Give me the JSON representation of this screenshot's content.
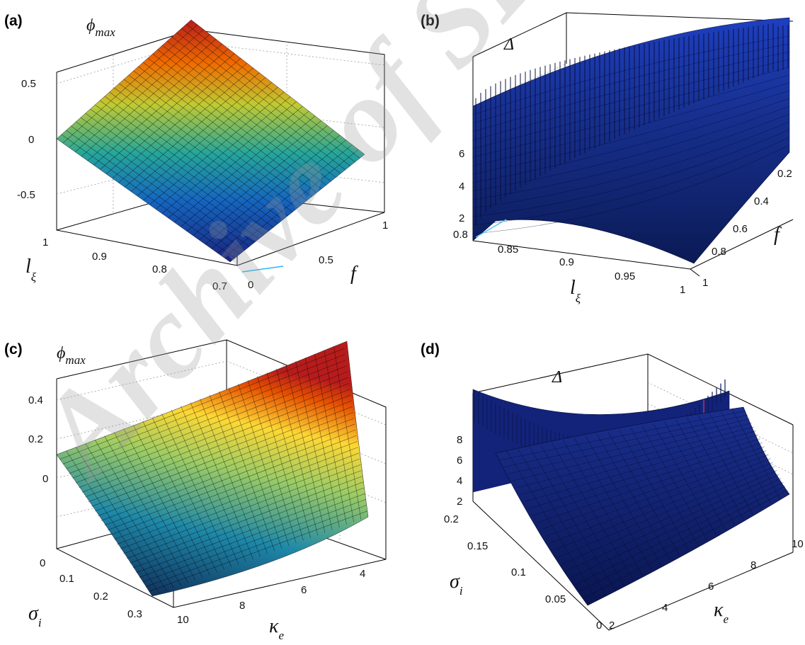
{
  "watermark": "Archive of SID",
  "chart_data": [
    {
      "panel": "(a)",
      "type": "surface",
      "zlabel": "φ_max",
      "xlabel": "l_ξ",
      "ylabel": "f",
      "x_ticks": [
        "1",
        "0.9",
        "0.8",
        "0.7"
      ],
      "y_ticks": [
        "0",
        "0.5",
        "1"
      ],
      "z_ticks": [
        "0.5",
        "0",
        "-0.5"
      ],
      "xlim": [
        0.7,
        1
      ],
      "ylim": [
        0,
        1
      ],
      "zlim": [
        -0.8,
        0.65
      ],
      "colormap": "jet",
      "corner_values": {
        "x1_y0": 0.0,
        "x1_y1": 0.65,
        "x07_y0": -0.78,
        "x07_y1": 0.0
      }
    },
    {
      "panel": "(b)",
      "type": "surface",
      "zlabel": "Δ",
      "xlabel": "l_ξ",
      "ylabel": "f",
      "x_ticks": [
        "0.8",
        "0.85",
        "0.9",
        "0.95",
        "1"
      ],
      "y_ticks": [
        "1",
        "0.8",
        "0.6",
        "0.4",
        "0.2"
      ],
      "z_ticks": [
        "6",
        "4",
        "2"
      ],
      "xlim": [
        0.8,
        1
      ],
      "ylim": [
        0.2,
        1
      ],
      "colormap": "jet"
    },
    {
      "panel": "(c)",
      "type": "surface",
      "zlabel": "φ_max",
      "xlabel": "κ_e",
      "ylabel": "σ_i",
      "x_ticks": [
        "10",
        "8",
        "6",
        "4"
      ],
      "y_ticks": [
        "0",
        "0.1",
        "0.2",
        "0.3"
      ],
      "z_ticks": [
        "0.4",
        "0.2",
        "0"
      ],
      "xlim": [
        3,
        10
      ],
      "ylim": [
        0,
        0.35
      ],
      "colormap": "jet"
    },
    {
      "panel": "(d)",
      "type": "surface",
      "zlabel": "Δ",
      "xlabel": "κ_e",
      "ylabel": "σ_i",
      "x_ticks": [
        "2",
        "4",
        "6",
        "8",
        "10"
      ],
      "y_ticks": [
        "0.2",
        "0.15",
        "0.1",
        "0.05",
        "0"
      ],
      "z_ticks": [
        "8",
        "6",
        "4",
        "2"
      ],
      "xlim": [
        2,
        10
      ],
      "ylim": [
        0,
        0.2
      ],
      "colormap": "jet"
    }
  ]
}
